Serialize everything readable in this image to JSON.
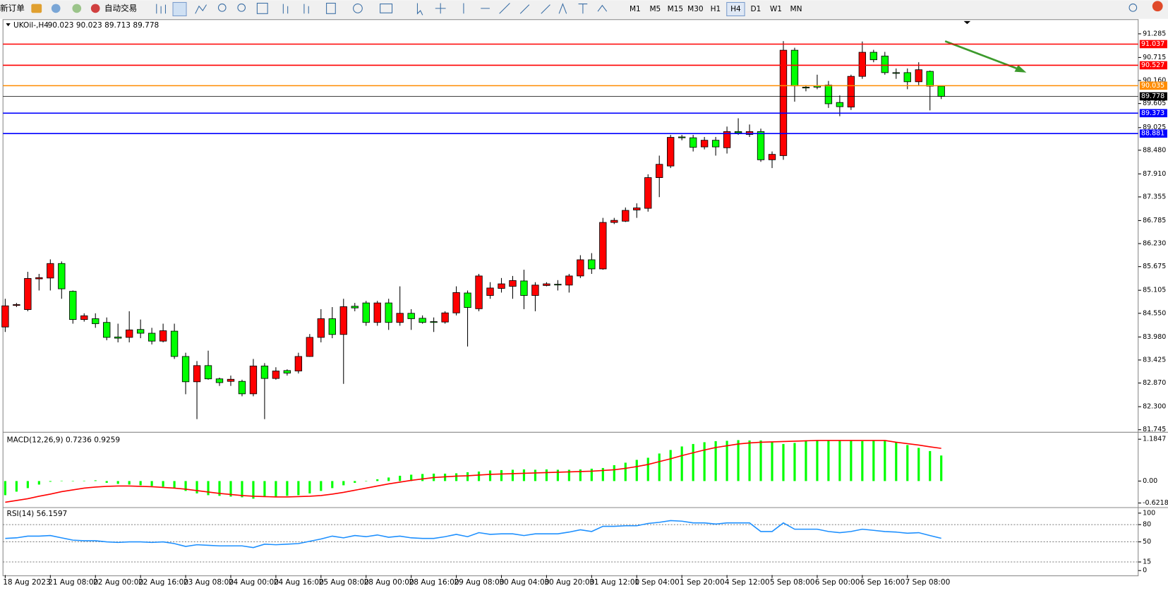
{
  "toolbar": {
    "new_order": "新订单",
    "auto_trading": "自动交易",
    "timeframes": [
      "M1",
      "M5",
      "M15",
      "M30",
      "H1",
      "H4",
      "D1",
      "W1",
      "MN"
    ]
  },
  "chart_data": [
    {
      "type": "candlestick",
      "title": "UKOil-,H4",
      "ohlc_label": "90.023 90.023 89.713 89.778",
      "up_color": "#ff0000",
      "down_color": "#00ff00",
      "categories": [
        "18 Aug 2023",
        null,
        null,
        null,
        "21 Aug 08:00",
        null,
        null,
        null,
        "22 Aug 00:00",
        null,
        null,
        null,
        "22 Aug 16:00",
        null,
        null,
        null,
        "23 Aug 08:00",
        null,
        null,
        null,
        "24 Aug 00:00",
        null,
        null,
        null,
        "24 Aug 16:00",
        null,
        null,
        null,
        "25 Aug 08:00",
        null,
        null,
        null,
        "28 Aug 00:00",
        null,
        null,
        null,
        "28 Aug 16:00",
        null,
        null,
        null,
        "29 Aug 08:00",
        null,
        null,
        null,
        "30 Aug 04:00",
        null,
        null,
        null,
        "30 Aug 20:00",
        null,
        null,
        null,
        "31 Aug 12:00",
        null,
        null,
        null,
        "1 Sep 04:00",
        null,
        null,
        null,
        "1 Sep 20:00",
        null,
        null,
        null,
        "4 Sep 12:00",
        null,
        null,
        null,
        "5 Sep 08:00",
        null,
        null,
        null,
        "6 Sep 00:00",
        null,
        null,
        null,
        "6 Sep 16:00",
        null,
        null,
        null,
        "7 Sep 08:00",
        null,
        null,
        null
      ],
      "open": [
        84.22,
        84.74,
        84.64,
        85.38,
        85.4,
        85.75,
        85.08,
        84.4,
        84.42,
        84.33,
        83.98,
        83.97,
        84.16,
        84.07,
        83.88,
        84.12,
        83.51,
        82.9,
        83.29,
        82.97,
        82.91,
        82.91,
        82.61,
        83.28,
        82.98,
        83.17,
        83.16,
        83.51,
        83.97,
        84.42,
        84.04,
        84.72,
        84.8,
        84.33,
        84.8,
        84.33,
        84.55,
        84.43,
        84.35,
        84.34,
        84.56,
        85.04,
        84.66,
        84.98,
        85.15,
        85.2,
        85.33,
        84.98,
        85.22,
        85.25,
        85.23,
        85.45,
        85.84,
        85.62,
        86.74,
        86.77,
        87.04,
        87.08,
        87.82,
        88.1,
        88.8,
        88.78,
        88.56,
        88.72,
        88.54,
        88.93,
        88.86,
        88.93,
        88.25,
        88.35,
        90.89,
        90.0,
        90.03,
        90.05,
        89.63,
        89.52,
        90.26,
        90.84,
        90.75,
        90.35,
        90.35,
        90.13,
        90.38,
        90.023
      ],
      "high": [
        84.9,
        84.8,
        85.55,
        85.5,
        85.85,
        85.8,
        85.1,
        84.55,
        84.55,
        84.45,
        84.3,
        84.6,
        84.4,
        84.2,
        84.3,
        84.3,
        83.6,
        83.4,
        83.65,
        83.0,
        83.05,
        82.95,
        83.45,
        83.35,
        83.25,
        83.2,
        83.6,
        84.05,
        84.65,
        84.7,
        84.9,
        84.8,
        84.85,
        84.85,
        84.9,
        85.2,
        84.65,
        84.5,
        84.45,
        84.6,
        85.2,
        85.1,
        85.5,
        85.3,
        85.4,
        85.45,
        85.6,
        85.3,
        85.3,
        85.35,
        85.5,
        85.95,
        86.0,
        86.85,
        86.85,
        87.1,
        87.2,
        87.9,
        88.35,
        88.85,
        88.85,
        88.85,
        88.8,
        88.8,
        89.05,
        89.25,
        89.1,
        89.0,
        88.45,
        91.11,
        90.95,
        90.05,
        90.3,
        90.15,
        89.8,
        90.3,
        91.1,
        90.9,
        90.85,
        90.45,
        90.45,
        90.6,
        90.4,
        90.023
      ],
      "low": [
        84.1,
        84.7,
        84.6,
        85.1,
        85.1,
        84.9,
        84.3,
        84.35,
        84.2,
        83.9,
        83.85,
        83.85,
        83.95,
        83.8,
        83.85,
        83.45,
        82.6,
        82.0,
        82.95,
        82.8,
        82.8,
        82.55,
        82.55,
        82.0,
        82.95,
        83.05,
        83.1,
        83.5,
        83.85,
        83.95,
        82.85,
        84.6,
        84.25,
        84.25,
        84.15,
        84.25,
        84.15,
        84.3,
        84.1,
        84.3,
        84.5,
        83.75,
        84.6,
        84.9,
        85.05,
        84.9,
        84.65,
        84.6,
        85.2,
        85.1,
        85.05,
        85.4,
        85.5,
        85.6,
        86.7,
        86.75,
        86.85,
        87.0,
        87.35,
        88.05,
        88.72,
        88.45,
        88.5,
        88.35,
        88.4,
        88.85,
        88.8,
        88.2,
        88.05,
        88.25,
        89.65,
        89.9,
        89.95,
        89.5,
        89.3,
        89.45,
        90.2,
        90.6,
        90.3,
        90.2,
        89.95,
        90.05,
        89.44,
        89.713
      ],
      "close": [
        84.73,
        84.76,
        85.39,
        85.41,
        85.75,
        85.14,
        84.4,
        84.49,
        84.3,
        83.97,
        83.95,
        84.15,
        84.07,
        83.88,
        84.13,
        83.51,
        82.9,
        83.29,
        82.97,
        82.88,
        82.96,
        82.61,
        83.28,
        82.98,
        83.16,
        83.11,
        83.51,
        83.97,
        84.42,
        84.04,
        84.71,
        84.68,
        84.33,
        84.8,
        84.33,
        84.55,
        84.42,
        84.33,
        84.33,
        84.56,
        85.05,
        84.69,
        85.45,
        85.16,
        85.26,
        85.34,
        84.98,
        85.23,
        85.26,
        85.24,
        85.45,
        85.84,
        85.62,
        86.74,
        86.79,
        87.03,
        87.09,
        87.82,
        88.14,
        88.79,
        88.78,
        88.55,
        88.72,
        88.56,
        88.93,
        88.9,
        88.93,
        88.25,
        88.38,
        90.89,
        90.03,
        89.98,
        90.0,
        89.6,
        89.53,
        90.26,
        90.84,
        90.66,
        90.35,
        90.34,
        90.13,
        90.42,
        90.023,
        89.778
      ],
      "ylim": [
        81.71,
        91.61
      ],
      "yticks": [
        91.285,
        90.715,
        {
          "value": 90.16,
          "label": "90.160"
        },
        89.605,
        89.025,
        {
          "value": 88.48,
          "label": "88.480"
        },
        {
          "value": 87.91,
          "label": "87.910"
        },
        87.355,
        86.785,
        {
          "value": 86.23,
          "label": "86.230"
        },
        85.675,
        85.105,
        {
          "value": 84.55,
          "label": "84.550"
        },
        {
          "value": 83.98,
          "label": "83.980"
        },
        83.425,
        {
          "value": 82.87,
          "label": "82.870"
        },
        {
          "value": 82.3,
          "label": "82.300"
        },
        81.745
      ],
      "hlines": [
        {
          "value": 91.037,
          "color": "#ff0000"
        },
        {
          "value": 90.527,
          "color": "#ff0000"
        },
        {
          "value": 90.035,
          "color": "#ff8c00"
        },
        {
          "value": 89.778,
          "color": "#000000"
        },
        {
          "value": 89.373,
          "color": "#0000ff"
        },
        {
          "value": 88.881,
          "color": "#0000ff"
        }
      ]
    },
    {
      "type": "macd",
      "title": "MACD(12,26,9) 0.7236 0.9259",
      "ylim": [
        -0.72,
        1.35
      ],
      "yticks": [
        1.1847,
        {
          "value": 0,
          "label": "0.00"
        },
        -0.6218
      ],
      "series": [
        {
          "color": "#00ff00",
          "values": [
            -0.4,
            -0.3,
            -0.2,
            -0.1,
            -0.02,
            0.01,
            0.0,
            0.01,
            0.02,
            -0.05,
            -0.08,
            -0.1,
            -0.12,
            -0.14,
            -0.16,
            -0.2,
            -0.28,
            -0.35,
            -0.4,
            -0.42,
            -0.44,
            -0.46,
            -0.5,
            -0.45,
            -0.45,
            -0.42,
            -0.4,
            -0.35,
            -0.28,
            -0.2,
            -0.12,
            -0.05,
            0.0,
            0.05,
            0.1,
            0.15,
            0.18,
            0.2,
            0.21,
            0.21,
            0.22,
            0.25,
            0.27,
            0.3,
            0.31,
            0.32,
            0.33,
            0.32,
            0.33,
            0.32,
            0.32,
            0.33,
            0.35,
            0.37,
            0.45,
            0.52,
            0.6,
            0.66,
            0.78,
            0.88,
            0.98,
            1.05,
            1.1,
            1.13,
            1.14,
            1.16,
            1.15,
            1.15,
            1.1,
            1.05,
            1.08,
            1.15,
            1.15,
            1.16,
            1.15,
            1.14,
            1.13,
            1.14,
            1.16,
            1.1,
            1.02,
            0.94,
            0.85,
            0.7236
          ]
        },
        {
          "color": "#ff0000",
          "values": [
            -0.6,
            -0.55,
            -0.5,
            -0.43,
            -0.37,
            -0.3,
            -0.25,
            -0.2,
            -0.17,
            -0.15,
            -0.14,
            -0.14,
            -0.15,
            -0.16,
            -0.18,
            -0.2,
            -0.23,
            -0.27,
            -0.31,
            -0.35,
            -0.38,
            -0.41,
            -0.43,
            -0.44,
            -0.45,
            -0.45,
            -0.44,
            -0.43,
            -0.41,
            -0.37,
            -0.32,
            -0.26,
            -0.2,
            -0.14,
            -0.08,
            -0.03,
            0.02,
            0.06,
            0.1,
            0.12,
            0.14,
            0.15,
            0.17,
            0.19,
            0.2,
            0.21,
            0.22,
            0.23,
            0.24,
            0.25,
            0.26,
            0.27,
            0.28,
            0.3,
            0.32,
            0.36,
            0.41,
            0.47,
            0.55,
            0.63,
            0.72,
            0.8,
            0.88,
            0.95,
            1.0,
            1.05,
            1.08,
            1.1,
            1.11,
            1.12,
            1.13,
            1.14,
            1.15,
            1.15,
            1.15,
            1.15,
            1.15,
            1.15,
            1.15,
            1.1,
            1.06,
            1.02,
            0.97,
            0.9259
          ]
        }
      ]
    },
    {
      "type": "line",
      "title": "RSI(14) 56.1597",
      "ylim": [
        -6.5,
        109
      ],
      "yticks": [
        100,
        80,
        50,
        15,
        0
      ],
      "series": [
        {
          "color": "#1e90ff",
          "values": [
            56,
            57,
            60,
            60,
            61,
            57,
            53,
            52,
            52,
            50,
            49,
            50,
            50,
            49,
            50,
            47,
            42,
            45,
            44,
            43,
            43,
            43,
            40,
            46,
            45,
            46,
            47,
            51,
            55,
            60,
            57,
            61,
            59,
            62,
            58,
            60,
            57,
            56,
            56,
            59,
            63,
            59,
            66,
            63,
            64,
            64,
            61,
            64,
            64,
            64,
            67,
            71,
            68,
            77,
            77,
            78,
            78,
            82,
            84,
            87,
            86,
            83,
            83,
            81,
            83,
            83,
            83,
            68,
            68,
            83,
            72,
            72,
            72,
            68,
            66,
            68,
            72,
            70,
            68,
            67,
            65,
            66,
            61,
            56.1597
          ]
        }
      ]
    }
  ]
}
